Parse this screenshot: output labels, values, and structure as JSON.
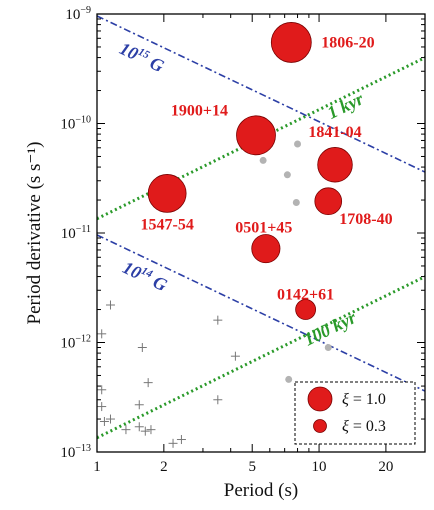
{
  "chart_data": {
    "type": "scatter",
    "title": "",
    "xlabel": "Period  (s)",
    "ylabel": "Period derivative (s s⁻¹)",
    "xscale": "log",
    "yscale": "log",
    "xlim": [
      1,
      30
    ],
    "ylim": [
      1e-13,
      1e-09
    ],
    "x_ticks": [
      {
        "value": 1,
        "label": "1"
      },
      {
        "value": 2,
        "label": "2"
      },
      {
        "value": 5,
        "label": "5"
      },
      {
        "value": 10,
        "label": "10"
      },
      {
        "value": 20,
        "label": "20"
      }
    ],
    "y_ticks": [
      {
        "value": 1e-13,
        "mantissa": "10",
        "exp": "−13"
      },
      {
        "value": 1e-12,
        "mantissa": "10",
        "exp": "−12"
      },
      {
        "value": 1e-11,
        "mantissa": "10",
        "exp": "−11"
      },
      {
        "value": 1e-10,
        "mantissa": "10",
        "exp": "−10"
      },
      {
        "value": 1e-09,
        "mantissa": "10",
        "exp": "−9"
      }
    ],
    "grid": false,
    "magnetars": [
      {
        "name": "1806-20",
        "x": 7.5,
        "y": 5.5e-10,
        "xi": 1.0
      },
      {
        "name": "1900+14",
        "x": 5.2,
        "y": 7.8e-11,
        "xi": 0.95
      },
      {
        "name": "1841-04",
        "x": 11.8,
        "y": 4.2e-11,
        "xi": 0.75
      },
      {
        "name": "1547-54",
        "x": 2.07,
        "y": 2.3e-11,
        "xi": 0.9
      },
      {
        "name": "1708-40",
        "x": 11.0,
        "y": 1.95e-11,
        "xi": 0.45
      },
      {
        "name": "0501+45",
        "x": 5.76,
        "y": 7.2e-12,
        "xi": 0.5
      },
      {
        "name": "0142+61",
        "x": 8.7,
        "y": 2e-12,
        "xi": 0.25
      }
    ],
    "gray_sources": [
      {
        "x": 8.0,
        "y": 6.5e-11
      },
      {
        "x": 5.6,
        "y": 4.6e-11
      },
      {
        "x": 7.2,
        "y": 3.4e-11
      },
      {
        "x": 7.9,
        "y": 1.9e-11
      },
      {
        "x": 11.0,
        "y": 9e-13
      },
      {
        "x": 7.3,
        "y": 4.6e-13
      }
    ],
    "radio_pulsars": [
      {
        "x": 1.15,
        "y": 2.2e-12
      },
      {
        "x": 1.05,
        "y": 1.2e-12
      },
      {
        "x": 1.6,
        "y": 9e-13
      },
      {
        "x": 1.7,
        "y": 4.3e-13
      },
      {
        "x": 1.05,
        "y": 3.7e-13
      },
      {
        "x": 1.05,
        "y": 2.6e-13
      },
      {
        "x": 1.55,
        "y": 2.7e-13
      },
      {
        "x": 1.15,
        "y": 2e-13
      },
      {
        "x": 1.08,
        "y": 1.9e-13
      },
      {
        "x": 1.35,
        "y": 1.6e-13
      },
      {
        "x": 1.55,
        "y": 1.7e-13
      },
      {
        "x": 1.65,
        "y": 1.55e-13
      },
      {
        "x": 1.75,
        "y": 1.6e-13
      },
      {
        "x": 2.2,
        "y": 1.2e-13
      },
      {
        "x": 2.4,
        "y": 1.3e-13
      },
      {
        "x": 3.5,
        "y": 1.6e-12
      },
      {
        "x": 3.5,
        "y": 3e-13
      },
      {
        "x": 4.2,
        "y": 7.5e-13
      }
    ],
    "b_field_lines": [
      {
        "label_base": "10",
        "label_exp": "15",
        "label_unit": " G",
        "x1": 1,
        "y1": 9.6e-10,
        "x2": 30,
        "y2": 3.6e-11,
        "label_x": 1.55,
        "label_y": 3.6e-10,
        "color": "#2c3fa6"
      },
      {
        "label_base": "10",
        "label_exp": "14",
        "label_unit": " G",
        "x1": 1,
        "y1": 9.6e-12,
        "x2": 30,
        "y2": 3.6e-13,
        "label_x": 1.6,
        "label_y": 3.6e-12,
        "color": "#2c3fa6"
      }
    ],
    "age_lines": [
      {
        "label": "1 kyr",
        "x1": 1,
        "y1": 1.35e-11,
        "x2": 30,
        "y2": 4e-10,
        "label_x": 13.5,
        "label_y": 1.3e-10,
        "color": "#2a9a2a"
      },
      {
        "label": "100 kyr",
        "x1": 1,
        "y1": 1.35e-13,
        "x2": 30,
        "y2": 4e-12,
        "label_x": 11.5,
        "label_y": 1.2e-12,
        "color": "#2a9a2a"
      }
    ],
    "legend": {
      "position": "bottom-right",
      "entries": [
        {
          "symbol": "ξ",
          "label": " = 1.0",
          "xi": 1.0
        },
        {
          "symbol": "ξ",
          "label": " = 0.3",
          "xi": 0.3
        }
      ]
    },
    "colors": {
      "magnetar": "#e01b1b",
      "gray": "#b3b3b3",
      "pulsar": "#777777"
    }
  }
}
